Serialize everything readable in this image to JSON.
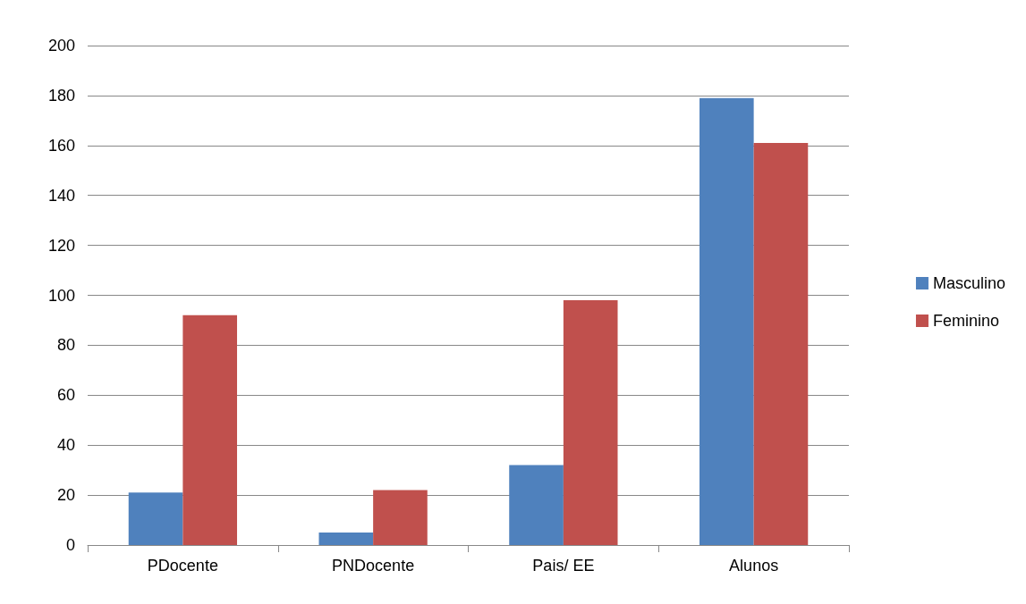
{
  "chart_data": {
    "type": "bar",
    "categories": [
      "PDocente",
      "PNDocente",
      "Pais/ EE",
      "Alunos"
    ],
    "series": [
      {
        "name": "Masculino",
        "color": "#4f81bd",
        "values": [
          21,
          5,
          32,
          179
        ]
      },
      {
        "name": "Feminino",
        "color": "#c0504d",
        "values": [
          92,
          22,
          98,
          161
        ]
      }
    ],
    "ylim": [
      0,
      200
    ],
    "yticks": [
      0,
      20,
      40,
      60,
      80,
      100,
      120,
      140,
      160,
      180,
      200
    ],
    "grid": "y",
    "legend": "right"
  }
}
